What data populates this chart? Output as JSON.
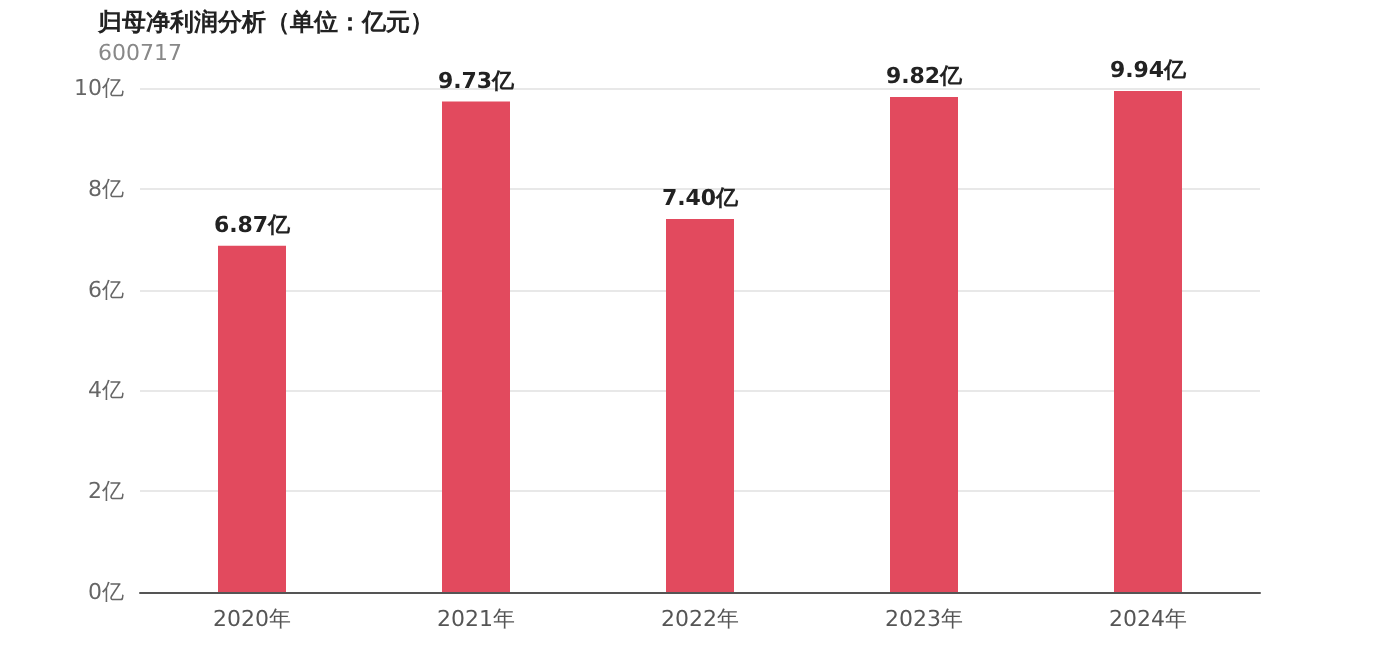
{
  "chart_data": {
    "type": "bar",
    "title": "归母净利润分析（单位：亿元）",
    "subtitle": "600717",
    "categories": [
      "2020年",
      "2021年",
      "2022年",
      "2023年",
      "2024年"
    ],
    "values": [
      6.87,
      9.73,
      7.4,
      9.82,
      9.94
    ],
    "color": "#e24a5e",
    "value_labels": [
      "6.87亿",
      "9.73亿",
      "7.40亿",
      "9.82亿",
      "9.94亿"
    ],
    "ylim": [
      0,
      10
    ],
    "yticks": [
      {
        "value": 0,
        "label": "0亿"
      },
      {
        "value": 2,
        "label": "2亿"
      },
      {
        "value": 4,
        "label": "4亿"
      },
      {
        "value": 6,
        "label": "6亿"
      },
      {
        "value": 8,
        "label": "8亿"
      },
      {
        "value": 10,
        "label": "10亿"
      }
    ],
    "grid": "y"
  }
}
